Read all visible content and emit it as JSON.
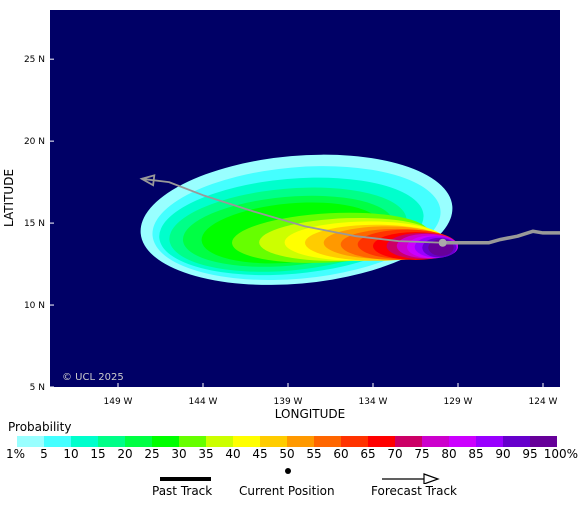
{
  "map": {
    "copyright": "© UCL 2025",
    "lat_ticks": [
      "25 N",
      "20 N",
      "15 N",
      "10 N",
      "5 N"
    ],
    "lon_ticks": [
      "149 W",
      "144 W",
      "139 W",
      "134 W",
      "129 W",
      "124 W"
    ],
    "xlabel": "LONGITUDE",
    "ylabel": "LATITUDE",
    "ocean_color": "#000066"
  },
  "legend": {
    "title": "Probability",
    "labels": [
      "1%",
      "5",
      "10",
      "15",
      "20",
      "25",
      "30",
      "35",
      "40",
      "45",
      "50",
      "55",
      "60",
      "65",
      "70",
      "75",
      "80",
      "85",
      "90",
      "95",
      "100%"
    ],
    "colors": [
      "#99ffff",
      "#44ffff",
      "#00ffcc",
      "#00ff88",
      "#00ff44",
      "#00ff00",
      "#66ff00",
      "#ccff00",
      "#ffff00",
      "#ffcc00",
      "#ff9900",
      "#ff6600",
      "#ff3300",
      "#ff0000",
      "#cc0066",
      "#cc00cc",
      "#cc00ff",
      "#9900ff",
      "#6600cc",
      "#660099"
    ]
  },
  "track_key": {
    "past_label": "Past Track",
    "current_label": "Current Position",
    "forecast_label": "Forecast Track"
  },
  "chart_data": {
    "type": "heatmap",
    "title": "",
    "xlabel": "LONGITUDE",
    "ylabel": "LATITUDE",
    "xlim": [
      -153,
      -123
    ],
    "ylim": [
      5,
      28
    ],
    "current_position": {
      "lon": -129.9,
      "lat": 13.8
    },
    "past_track": [
      {
        "lon": -123,
        "lat": 14.4
      },
      {
        "lon": -124,
        "lat": 14.4
      },
      {
        "lon": -124.6,
        "lat": 14.5
      },
      {
        "lon": -125.5,
        "lat": 14.2
      },
      {
        "lon": -126.5,
        "lat": 14.0
      },
      {
        "lon": -127.2,
        "lat": 13.8
      },
      {
        "lon": -128.5,
        "lat": 13.8
      },
      {
        "lon": -129.9,
        "lat": 13.8
      }
    ],
    "forecast_track": [
      {
        "lon": -129.9,
        "lat": 13.8
      },
      {
        "lon": -132.5,
        "lat": 13.9
      },
      {
        "lon": -135.0,
        "lat": 14.2
      },
      {
        "lon": -138.0,
        "lat": 14.8
      },
      {
        "lon": -141.0,
        "lat": 15.7
      },
      {
        "lon": -144.0,
        "lat": 16.7
      },
      {
        "lon": -146.0,
        "lat": 17.5
      },
      {
        "lon": -147.6,
        "lat": 17.7
      }
    ],
    "probability_contours": [
      {
        "level": 1,
        "cx": -138.5,
        "cy": 15.2,
        "rx": 9.2,
        "ry": 3.9,
        "tilt": -0.5
      },
      {
        "level": 5,
        "cx": -138.5,
        "cy": 15.0,
        "rx": 8.5,
        "ry": 3.4,
        "tilt": -0.5
      },
      {
        "level": 10,
        "cx": -138.8,
        "cy": 14.8,
        "rx": 7.8,
        "ry": 2.9,
        "tilt": -0.5
      },
      {
        "level": 15,
        "cx": -139.0,
        "cy": 14.6,
        "rx": 7.0,
        "ry": 2.5,
        "tilt": -0.5
      },
      {
        "level": 20,
        "cx": -139.0,
        "cy": 14.5,
        "rx": 6.2,
        "ry": 2.1,
        "tilt": -0.5
      },
      {
        "level": 25,
        "cx": -138.8,
        "cy": 14.4,
        "rx": 5.3,
        "ry": 1.8,
        "tilt": -0.5
      },
      {
        "level": 30,
        "cx": -136.5,
        "cy": 14.1,
        "rx": 5.8,
        "ry": 1.5,
        "tilt": -0.3
      },
      {
        "level": 35,
        "cx": -135.5,
        "cy": 14.0,
        "rx": 5.2,
        "ry": 1.3,
        "tilt": -0.2
      },
      {
        "level": 40,
        "cx": -134.5,
        "cy": 13.9,
        "rx": 4.7,
        "ry": 1.2,
        "tilt": -0.1
      },
      {
        "level": 45,
        "cx": -133.8,
        "cy": 13.8,
        "rx": 4.2,
        "ry": 1.1,
        "tilt": 0
      },
      {
        "level": 50,
        "cx": -133.2,
        "cy": 13.8,
        "rx": 3.7,
        "ry": 1.0,
        "tilt": 0
      },
      {
        "level": 55,
        "cx": -132.6,
        "cy": 13.7,
        "rx": 3.3,
        "ry": 0.95,
        "tilt": 0
      },
      {
        "level": 60,
        "cx": -132.0,
        "cy": 13.7,
        "rx": 2.9,
        "ry": 0.9,
        "tilt": 0
      },
      {
        "level": 65,
        "cx": -131.5,
        "cy": 13.6,
        "rx": 2.5,
        "ry": 0.85,
        "tilt": 0
      },
      {
        "level": 70,
        "cx": -131.1,
        "cy": 13.6,
        "rx": 2.1,
        "ry": 0.8,
        "tilt": 0
      },
      {
        "level": 75,
        "cx": -130.8,
        "cy": 13.6,
        "rx": 1.8,
        "ry": 0.75,
        "tilt": 0
      },
      {
        "level": 80,
        "cx": -130.5,
        "cy": 13.55,
        "rx": 1.5,
        "ry": 0.7,
        "tilt": 0
      },
      {
        "level": 85,
        "cx": -130.3,
        "cy": 13.55,
        "rx": 1.25,
        "ry": 0.65,
        "tilt": 0
      },
      {
        "level": 90,
        "cx": -130.1,
        "cy": 13.5,
        "rx": 1.0,
        "ry": 0.6,
        "tilt": 0
      },
      {
        "level": 95,
        "cx": -130.0,
        "cy": 13.5,
        "rx": 0.75,
        "ry": 0.5,
        "tilt": 0
      }
    ]
  }
}
